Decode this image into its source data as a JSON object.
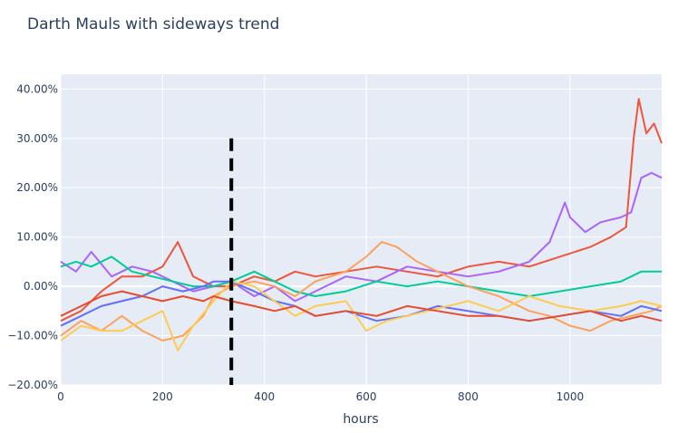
{
  "chart_data": {
    "type": "line",
    "title": "Darth Mauls with sideways trend",
    "xlabel": "hours",
    "ylabel": "",
    "xlim": [
      0,
      1180
    ],
    "ylim": [
      -20,
      43
    ],
    "x_ticks": [
      0,
      200,
      400,
      600,
      800,
      1000
    ],
    "x_tick_labels": [
      "0",
      "200",
      "400",
      "600",
      "800",
      "1000"
    ],
    "y_ticks": [
      -20,
      -10,
      0,
      10,
      20,
      30,
      40
    ],
    "y_tick_labels": [
      "−20.00%",
      "−10.00%",
      "0.00%",
      "10.00%",
      "20.00%",
      "30.00%",
      "40.00%"
    ],
    "grid": true,
    "legend": "none",
    "background": "#e5ecf6",
    "vline": {
      "x": 335,
      "y_range": [
        -20,
        30
      ],
      "color": "#000000",
      "dash": true
    },
    "series": [
      {
        "color": "#ef553b",
        "x": [
          0,
          40,
          80,
          120,
          160,
          200,
          230,
          260,
          300,
          335,
          380,
          420,
          460,
          500,
          560,
          620,
          680,
          740,
          800,
          860,
          920,
          980,
          1040,
          1080,
          1110,
          1125,
          1135,
          1150,
          1165,
          1180
        ],
        "values": [
          -7,
          -5,
          -1,
          2,
          2,
          4,
          9,
          2,
          0,
          0,
          2,
          1,
          3,
          2,
          3,
          4,
          3,
          2,
          4,
          5,
          4,
          6,
          8,
          10,
          12,
          30,
          38,
          31,
          33,
          29
        ]
      },
      {
        "color": "#ab63fa",
        "x": [
          0,
          30,
          60,
          100,
          140,
          180,
          220,
          260,
          300,
          335,
          380,
          420,
          460,
          500,
          560,
          620,
          680,
          740,
          800,
          860,
          920,
          960,
          990,
          1000,
          1030,
          1060,
          1100,
          1120,
          1140,
          1160,
          1180
        ],
        "values": [
          5,
          3,
          7,
          2,
          4,
          3,
          1,
          -1,
          0,
          1,
          -2,
          0,
          -3,
          -1,
          2,
          1,
          4,
          3,
          2,
          3,
          5,
          9,
          17,
          14,
          11,
          13,
          14,
          15,
          22,
          23,
          22
        ]
      },
      {
        "color": "#00cc96",
        "x": [
          0,
          30,
          60,
          100,
          140,
          180,
          220,
          260,
          300,
          335,
          380,
          420,
          460,
          500,
          560,
          620,
          680,
          740,
          800,
          860,
          920,
          980,
          1040,
          1100,
          1140,
          1180
        ],
        "values": [
          4,
          5,
          4,
          6,
          3,
          2,
          1,
          0,
          0,
          1,
          3,
          1,
          -1,
          -2,
          -1,
          1,
          0,
          1,
          0,
          -1,
          -2,
          -1,
          0,
          1,
          3,
          3
        ]
      },
      {
        "color": "#ffa15a",
        "x": [
          0,
          40,
          80,
          120,
          160,
          200,
          240,
          280,
          300,
          335,
          380,
          420,
          460,
          500,
          560,
          600,
          630,
          660,
          700,
          740,
          800,
          860,
          920,
          960,
          1000,
          1040,
          1080,
          1120,
          1160,
          1180
        ],
        "values": [
          -10,
          -7,
          -9,
          -6,
          -9,
          -11,
          -10,
          -6,
          -2,
          0,
          1,
          0,
          -2,
          1,
          3,
          6,
          9,
          8,
          5,
          3,
          0,
          -2,
          -5,
          -6,
          -8,
          -9,
          -7,
          -6,
          -5,
          -4
        ]
      },
      {
        "color": "#636efa",
        "x": [
          0,
          40,
          80,
          120,
          160,
          200,
          240,
          280,
          300,
          335,
          380,
          420,
          460,
          500,
          560,
          620,
          680,
          740,
          800,
          860,
          920,
          980,
          1040,
          1100,
          1140,
          1180
        ],
        "values": [
          -8,
          -6,
          -4,
          -3,
          -2,
          0,
          -1,
          0,
          1,
          1,
          -1,
          -3,
          -4,
          -6,
          -5,
          -7,
          -6,
          -4,
          -5,
          -6,
          -7,
          -6,
          -5,
          -6,
          -4,
          -5
        ]
      },
      {
        "color": "#fecb52",
        "x": [
          0,
          40,
          80,
          120,
          160,
          200,
          230,
          260,
          300,
          335,
          380,
          420,
          460,
          500,
          560,
          600,
          640,
          680,
          720,
          760,
          800,
          860,
          920,
          980,
          1040,
          1100,
          1140,
          1180
        ],
        "values": [
          -11,
          -8,
          -9,
          -9,
          -7,
          -5,
          -13,
          -8,
          -3,
          1,
          0,
          -3,
          -6,
          -4,
          -3,
          -9,
          -7,
          -6,
          -5,
          -4,
          -3,
          -5,
          -2,
          -4,
          -5,
          -4,
          -3,
          -4
        ]
      },
      {
        "color": "#e74c2c",
        "x": [
          0,
          40,
          80,
          120,
          160,
          200,
          240,
          280,
          300,
          335,
          380,
          420,
          460,
          500,
          560,
          620,
          680,
          740,
          800,
          860,
          920,
          980,
          1040,
          1100,
          1140,
          1180
        ],
        "values": [
          -6,
          -4,
          -2,
          -1,
          -2,
          -3,
          -2,
          -3,
          -2,
          -3,
          -4,
          -5,
          -4,
          -6,
          -5,
          -6,
          -4,
          -5,
          -6,
          -6,
          -7,
          -6,
          -5,
          -7,
          -6,
          -7
        ]
      }
    ]
  }
}
